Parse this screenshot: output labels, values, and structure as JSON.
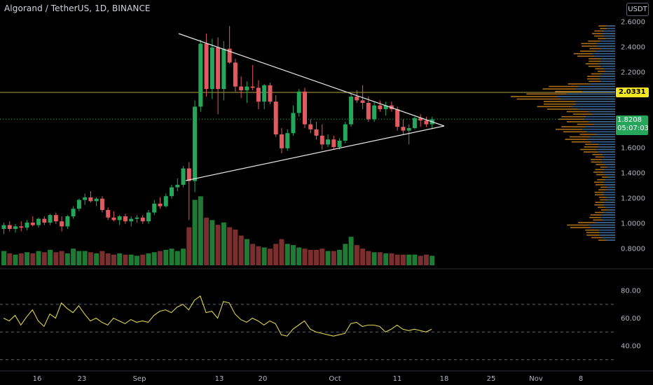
{
  "header": {
    "title": "Algorand / TetherUS, 1D, BINANCE",
    "currency_label": "USDT"
  },
  "price_axis": {
    "labels": [
      "2.6000",
      "2.4000",
      "2.2000",
      "1.6000",
      "1.4000",
      "1.2000",
      "1.0000",
      "0.8000"
    ],
    "level_tag": "2.0331",
    "last_price": "1.8208",
    "countdown": "05:07:03"
  },
  "rsi_axis": {
    "labels": [
      "80.00",
      "60.00",
      "40.00"
    ]
  },
  "time_axis": {
    "labels": [
      "16",
      "23",
      "Sep",
      "13",
      "20",
      "Oct",
      "11",
      "18",
      "25",
      "Nov",
      "8"
    ]
  },
  "colors": {
    "up": "#26a65b",
    "down": "#e05a5f",
    "vol_up": "#1f7a34",
    "vol_down": "#7a2e2e",
    "level_line": "#b5a642",
    "rsi_line": "#e0d34f",
    "triangle": "#e6e6e6",
    "profile_up": "#2962a6",
    "profile_down": "#c8821e"
  },
  "chart_data": [
    {
      "type": "candlestick",
      "title": "Algorand / TetherUS, 1D, BINANCE",
      "y_unit": "USDT",
      "ylim": [
        0.75,
        2.65
      ],
      "candles": [
        {
          "o": 0.95,
          "h": 1.0,
          "l": 0.91,
          "c": 0.98
        },
        {
          "o": 0.98,
          "h": 1.01,
          "l": 0.93,
          "c": 0.95
        },
        {
          "o": 0.95,
          "h": 0.99,
          "l": 0.92,
          "c": 0.97
        },
        {
          "o": 0.97,
          "h": 1.01,
          "l": 0.93,
          "c": 0.96
        },
        {
          "o": 0.96,
          "h": 1.02,
          "l": 0.94,
          "c": 1.0
        },
        {
          "o": 1.0,
          "h": 1.05,
          "l": 0.97,
          "c": 0.98
        },
        {
          "o": 0.98,
          "h": 1.04,
          "l": 0.96,
          "c": 1.03
        },
        {
          "o": 1.03,
          "h": 1.05,
          "l": 0.98,
          "c": 1.0
        },
        {
          "o": 1.0,
          "h": 1.07,
          "l": 0.98,
          "c": 1.06
        },
        {
          "o": 1.06,
          "h": 1.08,
          "l": 0.99,
          "c": 1.01
        },
        {
          "o": 1.01,
          "h": 1.05,
          "l": 0.93,
          "c": 0.97
        },
        {
          "o": 0.97,
          "h": 1.06,
          "l": 0.95,
          "c": 1.05
        },
        {
          "o": 1.05,
          "h": 1.13,
          "l": 1.03,
          "c": 1.11
        },
        {
          "o": 1.11,
          "h": 1.19,
          "l": 1.09,
          "c": 1.18
        },
        {
          "o": 1.18,
          "h": 1.23,
          "l": 1.14,
          "c": 1.2
        },
        {
          "o": 1.2,
          "h": 1.25,
          "l": 1.16,
          "c": 1.17
        },
        {
          "o": 1.17,
          "h": 1.2,
          "l": 1.13,
          "c": 1.19
        },
        {
          "o": 1.19,
          "h": 1.21,
          "l": 1.08,
          "c": 1.1
        },
        {
          "o": 1.1,
          "h": 1.12,
          "l": 1.02,
          "c": 1.04
        },
        {
          "o": 1.04,
          "h": 1.09,
          "l": 1.01,
          "c": 1.02
        },
        {
          "o": 1.02,
          "h": 1.06,
          "l": 0.98,
          "c": 1.05
        },
        {
          "o": 1.05,
          "h": 1.07,
          "l": 0.99,
          "c": 1.01
        },
        {
          "o": 1.01,
          "h": 1.05,
          "l": 0.97,
          "c": 1.03
        },
        {
          "o": 1.03,
          "h": 1.06,
          "l": 1.0,
          "c": 1.04
        },
        {
          "o": 1.04,
          "h": 1.06,
          "l": 0.99,
          "c": 1.01
        },
        {
          "o": 1.01,
          "h": 1.1,
          "l": 0.99,
          "c": 1.08
        },
        {
          "o": 1.08,
          "h": 1.18,
          "l": 1.06,
          "c": 1.15
        },
        {
          "o": 1.15,
          "h": 1.2,
          "l": 1.11,
          "c": 1.13
        },
        {
          "o": 1.13,
          "h": 1.23,
          "l": 1.12,
          "c": 1.21
        },
        {
          "o": 1.21,
          "h": 1.3,
          "l": 1.19,
          "c": 1.28
        },
        {
          "o": 1.28,
          "h": 1.35,
          "l": 1.25,
          "c": 1.3
        },
        {
          "o": 1.3,
          "h": 1.45,
          "l": 1.28,
          "c": 1.43
        },
        {
          "o": 1.43,
          "h": 1.48,
          "l": 1.02,
          "c": 1.33
        },
        {
          "o": 1.33,
          "h": 1.97,
          "l": 1.24,
          "c": 1.92
        },
        {
          "o": 1.92,
          "h": 2.45,
          "l": 1.88,
          "c": 2.42
        },
        {
          "o": 2.42,
          "h": 2.5,
          "l": 2.0,
          "c": 2.06
        },
        {
          "o": 2.06,
          "h": 2.46,
          "l": 1.98,
          "c": 2.39
        },
        {
          "o": 2.39,
          "h": 2.47,
          "l": 1.86,
          "c": 2.06
        },
        {
          "o": 2.06,
          "h": 2.44,
          "l": 1.97,
          "c": 2.38
        },
        {
          "o": 2.38,
          "h": 2.56,
          "l": 2.26,
          "c": 2.27
        },
        {
          "o": 2.27,
          "h": 2.3,
          "l": 2.04,
          "c": 2.08
        },
        {
          "o": 2.08,
          "h": 2.16,
          "l": 1.99,
          "c": 2.05
        },
        {
          "o": 2.05,
          "h": 2.12,
          "l": 1.95,
          "c": 2.08
        },
        {
          "o": 2.08,
          "h": 2.25,
          "l": 2.05,
          "c": 2.07
        },
        {
          "o": 2.07,
          "h": 2.13,
          "l": 1.9,
          "c": 1.96
        },
        {
          "o": 1.96,
          "h": 2.1,
          "l": 1.9,
          "c": 2.09
        },
        {
          "o": 2.09,
          "h": 2.11,
          "l": 1.94,
          "c": 1.96
        },
        {
          "o": 1.96,
          "h": 2.01,
          "l": 1.68,
          "c": 1.7
        },
        {
          "o": 1.7,
          "h": 1.75,
          "l": 1.55,
          "c": 1.59
        },
        {
          "o": 1.59,
          "h": 1.74,
          "l": 1.57,
          "c": 1.71
        },
        {
          "o": 1.71,
          "h": 1.93,
          "l": 1.69,
          "c": 1.87
        },
        {
          "o": 1.87,
          "h": 2.06,
          "l": 1.84,
          "c": 2.04
        },
        {
          "o": 2.04,
          "h": 2.07,
          "l": 1.75,
          "c": 1.78
        },
        {
          "o": 1.78,
          "h": 1.82,
          "l": 1.71,
          "c": 1.74
        },
        {
          "o": 1.74,
          "h": 1.8,
          "l": 1.66,
          "c": 1.69
        },
        {
          "o": 1.69,
          "h": 1.78,
          "l": 1.58,
          "c": 1.62
        },
        {
          "o": 1.62,
          "h": 1.7,
          "l": 1.6,
          "c": 1.66
        },
        {
          "o": 1.66,
          "h": 1.69,
          "l": 1.58,
          "c": 1.6
        },
        {
          "o": 1.6,
          "h": 1.67,
          "l": 1.58,
          "c": 1.65
        },
        {
          "o": 1.65,
          "h": 1.8,
          "l": 1.63,
          "c": 1.78
        },
        {
          "o": 1.78,
          "h": 2.02,
          "l": 1.76,
          "c": 2.0
        },
        {
          "o": 2.0,
          "h": 2.05,
          "l": 1.95,
          "c": 1.97
        },
        {
          "o": 1.97,
          "h": 2.09,
          "l": 1.9,
          "c": 1.95
        },
        {
          "o": 1.95,
          "h": 2.0,
          "l": 1.8,
          "c": 1.82
        },
        {
          "o": 1.82,
          "h": 1.96,
          "l": 1.8,
          "c": 1.93
        },
        {
          "o": 1.93,
          "h": 1.97,
          "l": 1.88,
          "c": 1.9
        },
        {
          "o": 1.9,
          "h": 1.96,
          "l": 1.85,
          "c": 1.93
        },
        {
          "o": 1.93,
          "h": 1.96,
          "l": 1.88,
          "c": 1.9
        },
        {
          "o": 1.9,
          "h": 1.92,
          "l": 1.73,
          "c": 1.76
        },
        {
          "o": 1.76,
          "h": 1.82,
          "l": 1.7,
          "c": 1.73
        },
        {
          "o": 1.73,
          "h": 1.78,
          "l": 1.62,
          "c": 1.75
        },
        {
          "o": 1.75,
          "h": 1.84,
          "l": 1.74,
          "c": 1.83
        },
        {
          "o": 1.83,
          "h": 1.86,
          "l": 1.76,
          "c": 1.81
        },
        {
          "o": 1.81,
          "h": 1.84,
          "l": 1.76,
          "c": 1.78
        },
        {
          "o": 1.78,
          "h": 1.84,
          "l": 1.75,
          "c": 1.82
        }
      ],
      "volume": [
        12,
        10,
        9,
        10,
        11,
        10,
        12,
        11,
        13,
        11,
        12,
        10,
        14,
        12,
        12,
        11,
        10,
        12,
        10,
        9,
        10,
        9,
        9,
        8,
        9,
        10,
        11,
        12,
        13,
        14,
        12,
        14,
        32,
        55,
        58,
        40,
        38,
        34,
        36,
        32,
        30,
        25,
        22,
        18,
        16,
        15,
        14,
        18,
        22,
        18,
        17,
        15,
        14,
        13,
        13,
        14,
        12,
        12,
        13,
        18,
        24,
        17,
        14,
        12,
        11,
        11,
        10,
        10,
        9,
        9,
        9,
        9,
        8,
        9,
        8
      ],
      "rsi": [
        60,
        58,
        62,
        55,
        61,
        66,
        58,
        54,
        63,
        60,
        71,
        67,
        64,
        69,
        63,
        58,
        60,
        57,
        55,
        60,
        58,
        56,
        59,
        57,
        58,
        57,
        62,
        65,
        66,
        64,
        68,
        70,
        66,
        73,
        76,
        64,
        65,
        60,
        72,
        71,
        63,
        59,
        57,
        60,
        58,
        55,
        58,
        56,
        48,
        47,
        52,
        55,
        58,
        52,
        50,
        49,
        48,
        47,
        48,
        49,
        56,
        57,
        54,
        55,
        55,
        54,
        50,
        52,
        55,
        52,
        51,
        52,
        51,
        50,
        52
      ]
    },
    {
      "type": "line",
      "title": "",
      "ylim": [
        30,
        90
      ],
      "levels": [
        70,
        50,
        30
      ]
    }
  ]
}
